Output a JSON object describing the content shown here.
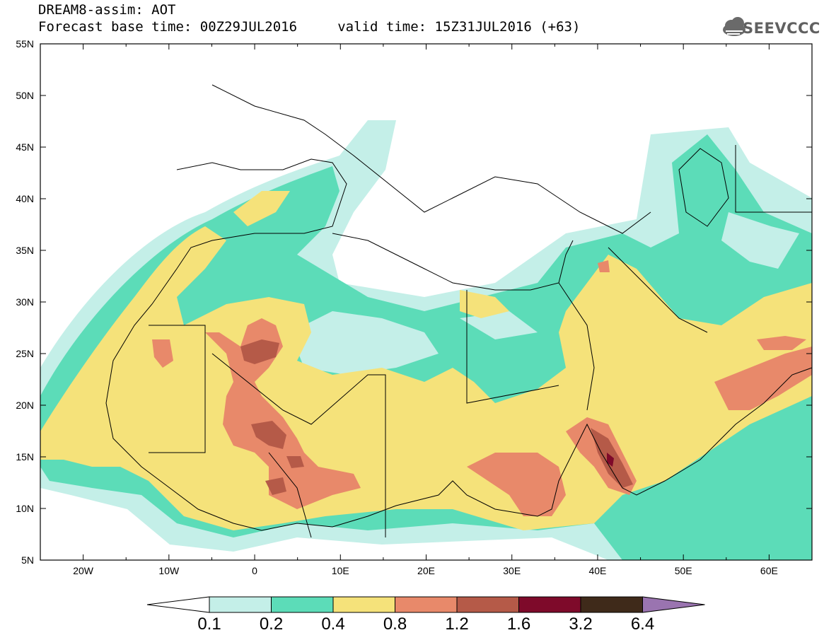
{
  "header": {
    "title_line1": "DREAM8-assim: AOT",
    "title_line2": "Forecast base time: 00Z29JUL2016     valid time: 15Z31JUL2016 (+63)"
  },
  "logo": {
    "text": "SEEVCCC",
    "icon": "cloud-icon"
  },
  "map": {
    "projection": "equirectangular",
    "lon_range": [
      -25,
      65
    ],
    "lat_range": [
      5,
      55
    ],
    "variable": "AOT",
    "lat_ticks": [
      "55N",
      "50N",
      "45N",
      "40N",
      "35N",
      "30N",
      "25N",
      "20N",
      "15N",
      "10N",
      "5N"
    ],
    "lon_ticks": [
      "20W",
      "10W",
      "0",
      "10E",
      "20E",
      "30E",
      "40E",
      "50E",
      "60E"
    ]
  },
  "colorbar": {
    "labels": [
      "0.1",
      "0.2",
      "0.4",
      "0.8",
      "1.2",
      "1.6",
      "3.2",
      "6.4"
    ],
    "colors": [
      "#c4efe8",
      "#5cdcb8",
      "#f5e27a",
      "#e8896a",
      "#b55a48",
      "#7e0a2a",
      "#3f2a1a",
      "#9a74b0"
    ],
    "below_color": "#ffffff",
    "above_color": "#9a74b0"
  }
}
